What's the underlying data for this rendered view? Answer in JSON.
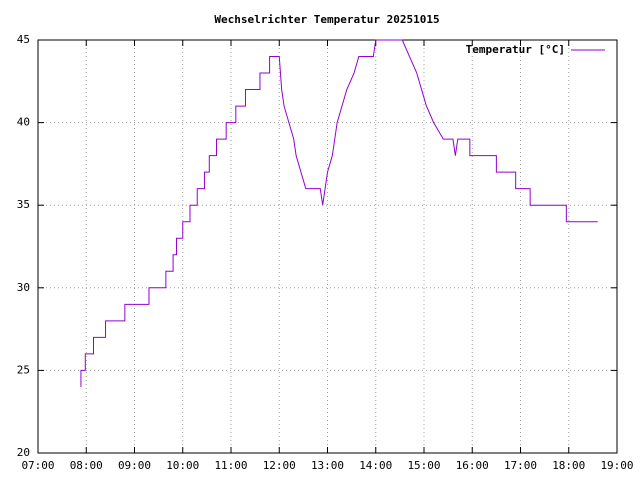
{
  "chart_data": {
    "type": "line",
    "title": "Wechselrichter Temperatur 20251015",
    "xlim": [
      7,
      19
    ],
    "xticks": [
      {
        "value": 7,
        "label": "07:00"
      },
      {
        "value": 8,
        "label": "08:00"
      },
      {
        "value": 9,
        "label": "09:00"
      },
      {
        "value": 10,
        "label": "10:00"
      },
      {
        "value": 11,
        "label": "11:00"
      },
      {
        "value": 12,
        "label": "12:00"
      },
      {
        "value": 13,
        "label": "13:00"
      },
      {
        "value": 14,
        "label": "14:00"
      },
      {
        "value": 15,
        "label": "15:00"
      },
      {
        "value": 16,
        "label": "16:00"
      },
      {
        "value": 17,
        "label": "17:00"
      },
      {
        "value": 18,
        "label": "18:00"
      },
      {
        "value": 19,
        "label": "19:00"
      }
    ],
    "ylim": [
      20,
      45
    ],
    "yticks": [
      20,
      25,
      30,
      35,
      40,
      45
    ],
    "grid": true,
    "legend": "top-right",
    "x": [
      7.89,
      7.89,
      7.98,
      7.98,
      8.15,
      8.15,
      8.4,
      8.4,
      8.8,
      8.8,
      9.3,
      9.3,
      9.65,
      9.65,
      9.8,
      9.8,
      9.87,
      9.87,
      10.0,
      10.0,
      10.15,
      10.15,
      10.3,
      10.3,
      10.45,
      10.45,
      10.55,
      10.55,
      10.7,
      10.7,
      10.9,
      10.9,
      11.1,
      11.1,
      11.3,
      11.3,
      11.6,
      11.6,
      11.8,
      11.8,
      12.0,
      12.05,
      12.1,
      12.2,
      12.3,
      12.35,
      12.45,
      12.55,
      12.85,
      12.9,
      12.95,
      13.0,
      13.1,
      13.2,
      13.3,
      13.4,
      13.55,
      13.65,
      13.95,
      14.0,
      14.55,
      14.7,
      14.85,
      14.95,
      15.05,
      15.2,
      15.4,
      15.6,
      15.65,
      15.7,
      15.95,
      15.95,
      16.5,
      16.5,
      16.9,
      16.9,
      17.2,
      17.2,
      17.95,
      17.95,
      18.6
    ],
    "series": [
      {
        "name": "Temperatur [°C]",
        "color": "#9400d3",
        "values": [
          24,
          25,
          25,
          26,
          26,
          27,
          27,
          28,
          28,
          29,
          29,
          30,
          30,
          31,
          31,
          32,
          32,
          33,
          33,
          34,
          34,
          35,
          35,
          36,
          36,
          37,
          37,
          38,
          38,
          39,
          39,
          40,
          40,
          41,
          41,
          42,
          42,
          43,
          43,
          44,
          44,
          42,
          41,
          40,
          39,
          38,
          37,
          36,
          36,
          35,
          36,
          37,
          38,
          40,
          41,
          42,
          43,
          44,
          44,
          45,
          45,
          44,
          43,
          42,
          41,
          40,
          39,
          39,
          38,
          39,
          39,
          38,
          38,
          37,
          37,
          36,
          36,
          35,
          35,
          34,
          34
        ]
      }
    ]
  }
}
